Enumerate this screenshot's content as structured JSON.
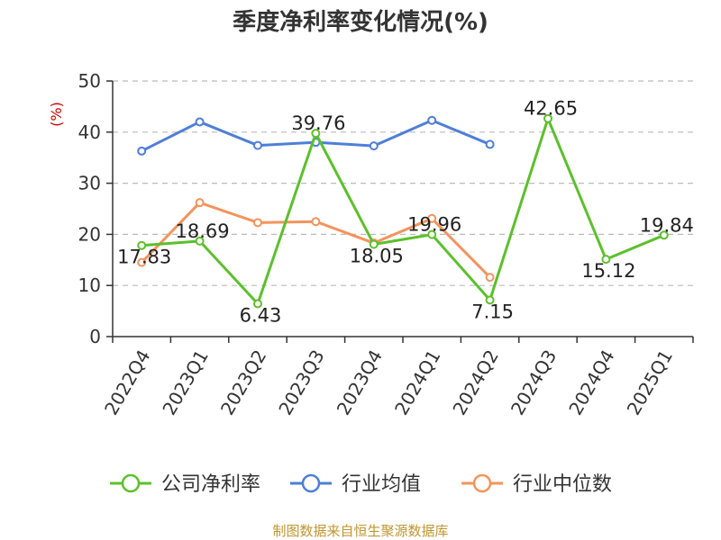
{
  "chart_data": {
    "type": "line",
    "title": "季度净利率变化情况(%)",
    "ylabel": "(%)",
    "xlabel": "",
    "ylim": [
      0,
      50
    ],
    "yticks": [
      0,
      10,
      20,
      30,
      40,
      50
    ],
    "grid": "horizontal dashed",
    "legend_position": "bottom",
    "categories": [
      "2022Q4",
      "2023Q1",
      "2023Q2",
      "2023Q3",
      "2023Q4",
      "2024Q1",
      "2024Q2",
      "2024Q3",
      "2024Q4",
      "2025Q1"
    ],
    "series": [
      {
        "name": "公司净利率",
        "color": "#5cc02c",
        "values": [
          17.83,
          18.69,
          6.43,
          39.76,
          18.05,
          19.96,
          7.15,
          42.65,
          15.12,
          19.84
        ],
        "show_labels": true
      },
      {
        "name": "行业均值",
        "color": "#4e7fd8",
        "values": [
          36.3,
          42.0,
          37.4,
          38.0,
          37.3,
          42.3,
          37.6,
          null,
          null,
          null
        ],
        "show_labels": false
      },
      {
        "name": "行业中位数",
        "color": "#f4935c",
        "values": [
          14.5,
          26.2,
          22.3,
          22.5,
          18.3,
          23.1,
          11.6,
          null,
          null,
          null
        ],
        "show_labels": false
      }
    ],
    "source": "制图数据来自恒生聚源数据库",
    "colors": {
      "ylabel": "#cc0000",
      "source": "#c0952f",
      "grid": "#bbbbbb",
      "axis": "#333333"
    }
  }
}
